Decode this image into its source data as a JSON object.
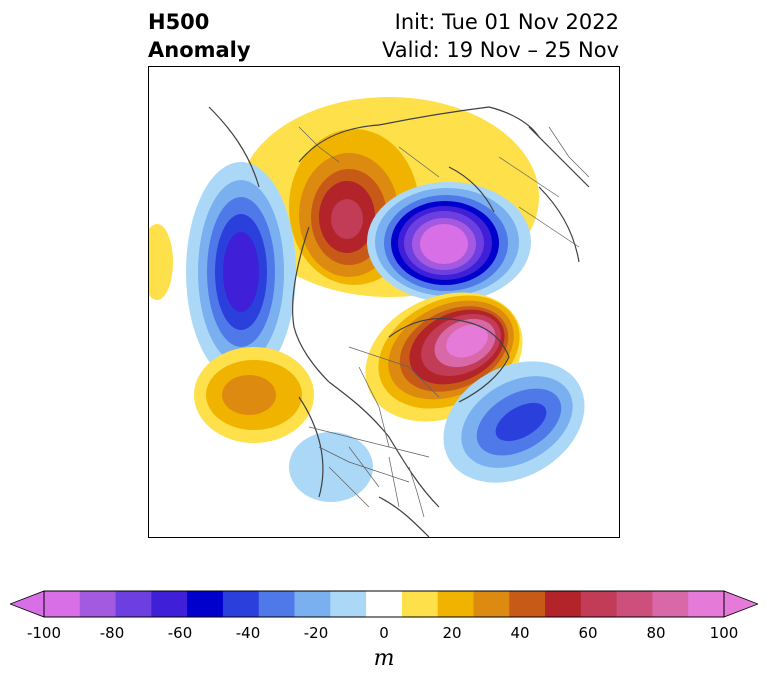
{
  "title": {
    "left_line1": "H500",
    "left_line2": "Anomaly",
    "right_line1": "Init: Tue 01 Nov 2022",
    "right_line2": "Valid: 19 Nov – 25 Nov"
  },
  "colorbar": {
    "units": "m",
    "ticks": [
      "-100",
      "-80",
      "-60",
      "-40",
      "-20",
      "0",
      "20",
      "40",
      "60",
      "80",
      "100"
    ],
    "levels": [
      -100,
      -90,
      -80,
      -70,
      -60,
      -50,
      -40,
      -30,
      -20,
      -10,
      10,
      20,
      30,
      40,
      50,
      60,
      70,
      80,
      90,
      100
    ],
    "colors": [
      "#d86fe6",
      "#a35ae0",
      "#6e3fe0",
      "#3f1fd8",
      "#0000cc",
      "#2b3fdc",
      "#4f79e8",
      "#7aaff0",
      "#acd8f8",
      "#ffffff",
      "#fde04a",
      "#f0b400",
      "#dd8a10",
      "#c85a18",
      "#b2232a",
      "#c23c58",
      "#cc4f7c",
      "#d868a8",
      "#e67ad8"
    ],
    "extend": "both"
  },
  "map": {
    "projection": "polar stereographic (North America / Arctic)",
    "features": [
      "coastlines",
      "country borders",
      "US state borders",
      "Canadian provincial borders"
    ],
    "anomaly_centers": [
      {
        "sign": "positive",
        "region": "northern Siberia / Kara Sea"
      },
      {
        "sign": "negative",
        "region": "North Pole / Arctic Ocean"
      },
      {
        "sign": "negative",
        "region": "Central Asia / Mongolia"
      },
      {
        "sign": "positive",
        "region": "Greenland / Baffin Bay"
      },
      {
        "sign": "negative",
        "region": "North Atlantic"
      },
      {
        "sign": "positive",
        "region": "Gulf of Alaska / North Pacific"
      },
      {
        "sign": "negative",
        "region": "southwestern United States"
      }
    ]
  }
}
